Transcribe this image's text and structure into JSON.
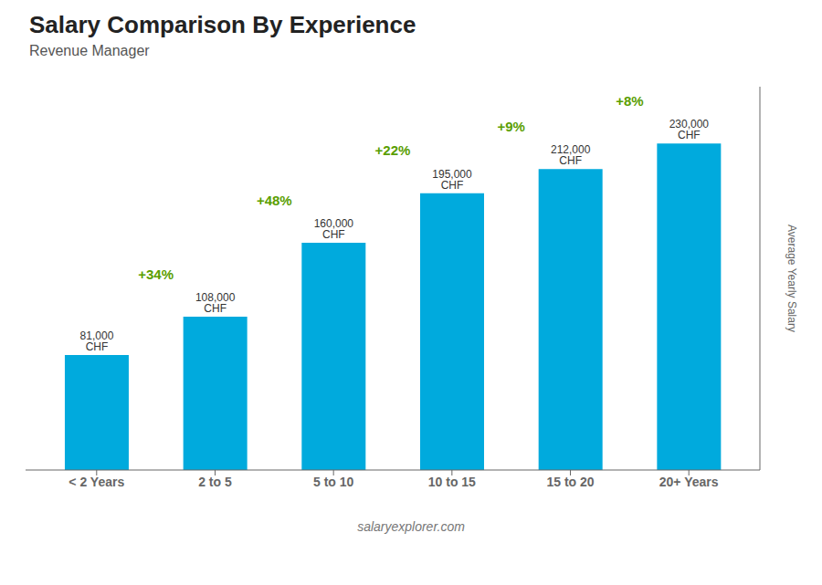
{
  "chart_data": {
    "type": "bar",
    "title": "Salary Comparison By Experience",
    "subtitle": "Revenue Manager",
    "categories": [
      "< 2 Years",
      "2 to 5",
      "5 to 10",
      "10 to 15",
      "15 to 20",
      "20+ Years"
    ],
    "values": [
      81000,
      108000,
      160000,
      195000,
      212000,
      230000
    ],
    "value_labels": [
      "81,000 CHF",
      "108,000 CHF",
      "160,000 CHF",
      "195,000 CHF",
      "212,000 CHF",
      "230,000 CHF"
    ],
    "data_labels": true,
    "annotations": [
      "+34%",
      "+48%",
      "+22%",
      "+9%",
      "+8%"
    ],
    "annotation_color": "#5a9e00",
    "y_label": "Average Yearly Salary",
    "footer": "salaryexplorer.com",
    "color": "#00aadd",
    "ylim": [
      0,
      270000
    ],
    "tick_labels": "x",
    "grid": false
  }
}
